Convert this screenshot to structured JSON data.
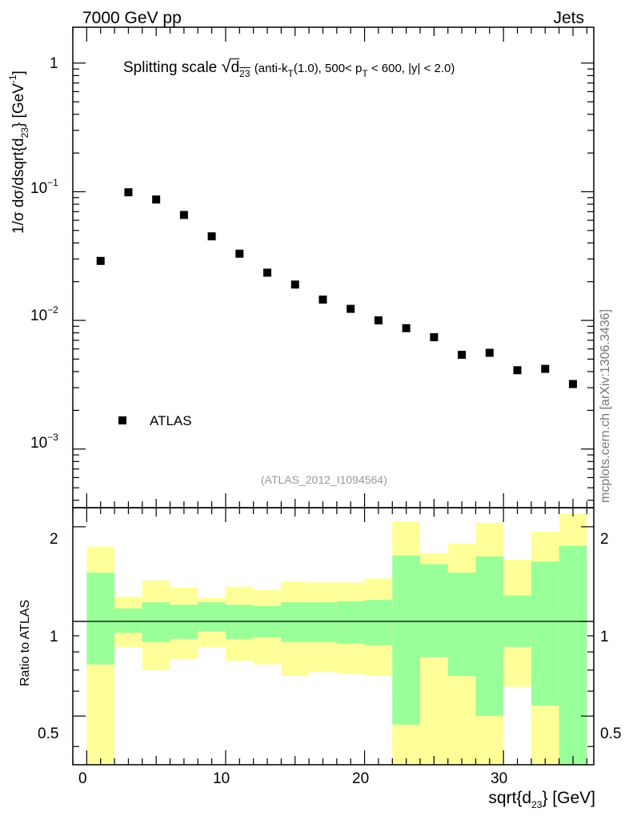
{
  "header": {
    "left": "7000 GeV pp",
    "right": "Jets"
  },
  "watermark": "mcplots.cern.ch [arXiv:1306.3436]",
  "analysis_id": "(ATLAS_2012_I1094564)",
  "colors": {
    "data_marker": "#000000",
    "band_outer": "#ffff99",
    "band_inner": "#99ff99",
    "ref_line": "#000000",
    "annotation": "#999999"
  },
  "chart_data": [
    {
      "type": "scatter",
      "panel": "main",
      "title": "Splitting scale",
      "title_symbol": "√d23",
      "title_cuts": "(anti-kT(1.0), 500< pT < 600, |y| < 2.0)",
      "ylabel": "1/σ dσ/dsqrt{d23} [GeV-1]",
      "y_scale": "log",
      "ylim": [
        0.00035,
        1.9
      ],
      "xlim": [
        -1,
        36.5
      ],
      "y_ticks": [
        "10^-3",
        "10^-2",
        "10^-1",
        "1"
      ],
      "legend": [
        "ATLAS"
      ],
      "legend_position": "bottom-left",
      "series": [
        {
          "name": "ATLAS",
          "x": [
            1,
            3,
            5,
            7,
            9,
            11,
            13,
            15,
            17,
            19,
            21,
            23,
            25,
            27,
            29,
            31,
            33,
            35
          ],
          "y": [
            0.029,
            0.099,
            0.087,
            0.066,
            0.045,
            0.033,
            0.0235,
            0.019,
            0.0145,
            0.0123,
            0.01,
            0.0087,
            0.0074,
            0.0054,
            0.0056,
            0.0041,
            0.0042,
            0.0032
          ]
        }
      ]
    },
    {
      "type": "area",
      "panel": "ratio",
      "ylabel": "Ratio to ATLAS",
      "xlabel": "sqrt{d23} [GeV]",
      "xlim": [
        -1,
        36.5
      ],
      "ylim": [
        0.35,
        2.3
      ],
      "x_ticks": [
        "0",
        "10",
        "20",
        "30"
      ],
      "y_ticks": [
        "0.5",
        "1",
        "2"
      ],
      "reference_line": 1,
      "bin_edges": [
        0,
        2,
        4,
        6,
        8,
        10,
        12,
        14,
        16,
        18,
        20,
        22,
        24,
        26,
        28,
        30,
        32,
        34,
        36
      ],
      "inner_band": {
        "low": [
          0.73,
          0.92,
          0.86,
          0.88,
          0.93,
          0.88,
          0.89,
          0.86,
          0.86,
          0.85,
          0.84,
          0.47,
          0.77,
          0.67,
          0.5,
          0.83,
          0.54,
          0.35
        ],
        "high": [
          1.43,
          1.1,
          1.15,
          1.13,
          1.15,
          1.13,
          1.12,
          1.15,
          1.15,
          1.16,
          1.17,
          1.62,
          1.52,
          1.43,
          1.61,
          1.21,
          1.55,
          1.74
        ]
      },
      "outer_band": {
        "low": [
          0.35,
          0.83,
          0.7,
          0.76,
          0.83,
          0.75,
          0.73,
          0.67,
          0.69,
          0.68,
          0.67,
          0.35,
          0.35,
          0.35,
          0.35,
          0.62,
          0.35,
          0.35
        ],
        "high": [
          1.73,
          1.2,
          1.35,
          1.28,
          1.19,
          1.29,
          1.26,
          1.34,
          1.33,
          1.33,
          1.37,
          2.08,
          1.65,
          1.77,
          2.06,
          1.57,
          1.93,
          2.2
        ]
      }
    }
  ]
}
